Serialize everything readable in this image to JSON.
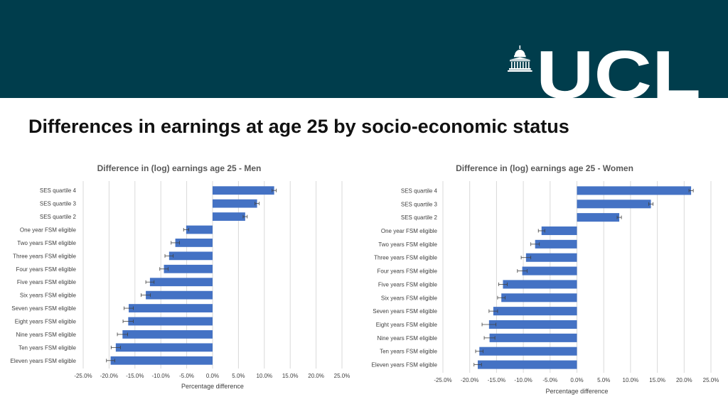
{
  "header": {
    "logo_text": "UCL",
    "title": "Differences in earnings at age 25 by socio-economic status"
  },
  "colors": {
    "banner": "#003d4c",
    "bar": "#4472c4",
    "grid": "#d9d9d9",
    "text": "#404040"
  },
  "icons": {
    "logo": "ucl-portico-icon"
  },
  "chart_data": [
    {
      "type": "bar",
      "orientation": "horizontal",
      "title": "Difference in (log) earnings age 25 - Men",
      "xlabel": "Percentage difference",
      "xlim": [
        -25,
        25
      ],
      "xticks": [
        "-25.0%",
        "-20.0%",
        "-15.0%",
        "-10.0%",
        "-5.0%",
        "0.0%",
        "5.0%",
        "10.0%",
        "15.0%",
        "20.0%",
        "25.0%"
      ],
      "grid": true,
      "error_bars": true,
      "categories": [
        "SES quartile 4",
        "SES quartile 3",
        "SES quartile 2",
        "One year FSM eligible",
        "Two years FSM eligible",
        "Three years FSM eligible",
        "Four years FSM eligible",
        "Five years FSM eligible",
        "Six years FSM eligible",
        "Seven years FSM eligible",
        "Eight years FSM eligible",
        "Nine years FSM eligible",
        "Ten years FSM eligible",
        "Eleven years FSM eligible"
      ],
      "values": [
        11.9,
        8.6,
        6.3,
        -5.1,
        -7.2,
        -8.4,
        -9.4,
        -12.1,
        -12.9,
        -16.2,
        -16.3,
        -17.4,
        -18.7,
        -19.7
      ],
      "errors": [
        0.4,
        0.4,
        0.4,
        0.5,
        0.8,
        0.8,
        0.8,
        0.8,
        0.9,
        0.9,
        1.0,
        1.0,
        0.9,
        0.8
      ]
    },
    {
      "type": "bar",
      "orientation": "horizontal",
      "title": "Difference in (log) earnings age 25 - Women",
      "xlabel": "Percentage difference",
      "xlim": [
        -25,
        25
      ],
      "xticks": [
        "-25.0%",
        "-20.0%",
        "-15.0%",
        "-10.0%",
        "-5.0%",
        "0.0%",
        "5.0%",
        "10.0%",
        "15.0%",
        "20.0%",
        "25.0%"
      ],
      "grid": true,
      "error_bars": true,
      "categories": [
        "SES quartile 4",
        "SES quartile 3",
        "SES quartile 2",
        "One year FSM eligible",
        "Two years FSM eligible",
        "Three years FSM eligible",
        "Four years FSM eligible",
        "Five years FSM eligible",
        "Six years FSM eligible",
        "Seven years FSM eligible",
        "Eight years FSM eligible",
        "Nine years FSM eligible",
        "Ten years FSM eligible",
        "Eleven years FSM eligible"
      ],
      "values": [
        21.3,
        13.8,
        7.9,
        -6.6,
        -7.8,
        -9.5,
        -10.2,
        -13.8,
        -14.1,
        -15.6,
        -16.4,
        -16.3,
        -18.2,
        -18.5
      ],
      "errors": [
        0.4,
        0.4,
        0.4,
        0.6,
        0.8,
        0.9,
        0.9,
        0.8,
        0.7,
        0.8,
        1.3,
        1.0,
        0.7,
        0.7
      ]
    }
  ]
}
